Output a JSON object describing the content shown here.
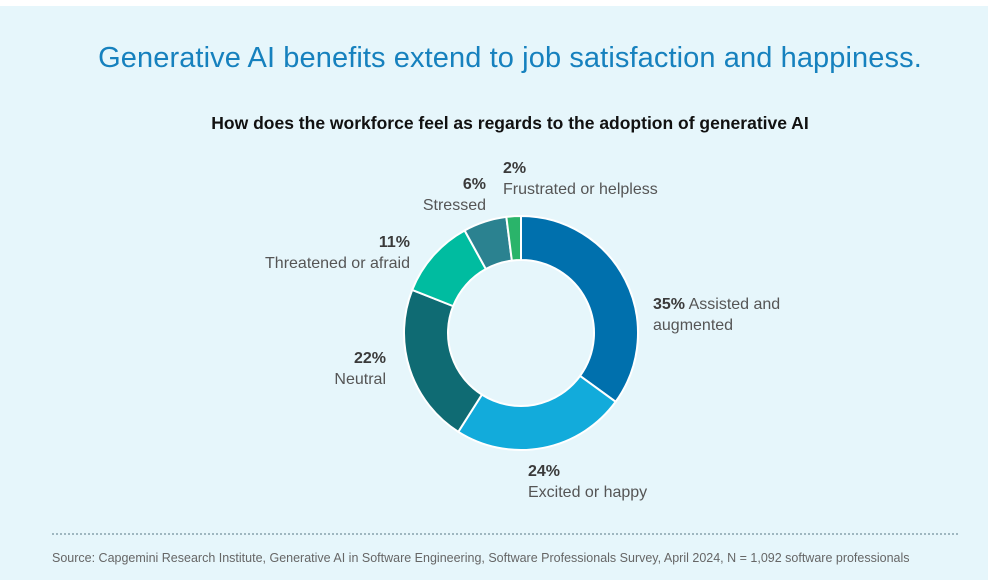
{
  "title": "Generative AI benefits extend to job satisfaction and happiness.",
  "subtitle": "How does the workforce feel as regards to the adoption of generative AI",
  "source": "Source: Capgemini Research Institute, Generative AI in Software Engineering, Software Professionals Survey, April 2024, N = 1,092 software professionals",
  "chart_data": {
    "type": "pie",
    "donut": true,
    "title": "How does the workforce feel as regards to the adoption of generative AI",
    "slices": [
      {
        "label_line1": "Assisted and",
        "label_line2": "augmented",
        "value": 35,
        "pct_label": "35%",
        "color": "#0070ad"
      },
      {
        "label_line1": "Excited or happy",
        "label_line2": "",
        "value": 24,
        "pct_label": "24%",
        "color": "#12abdb"
      },
      {
        "label_line1": "Neutral",
        "label_line2": "",
        "value": 22,
        "pct_label": "22%",
        "color": "#0f6b73"
      },
      {
        "label_line1": "Threatened or afraid",
        "label_line2": "",
        "value": 11,
        "pct_label": "11%",
        "color": "#00bca0"
      },
      {
        "label_line1": "Stressed",
        "label_line2": "",
        "value": 6,
        "pct_label": "6%",
        "color": "#2b8290"
      },
      {
        "label_line1": "Frustrated or helpless",
        "label_line2": "",
        "value": 2,
        "pct_label": "2%",
        "color": "#2ab46a"
      }
    ]
  }
}
